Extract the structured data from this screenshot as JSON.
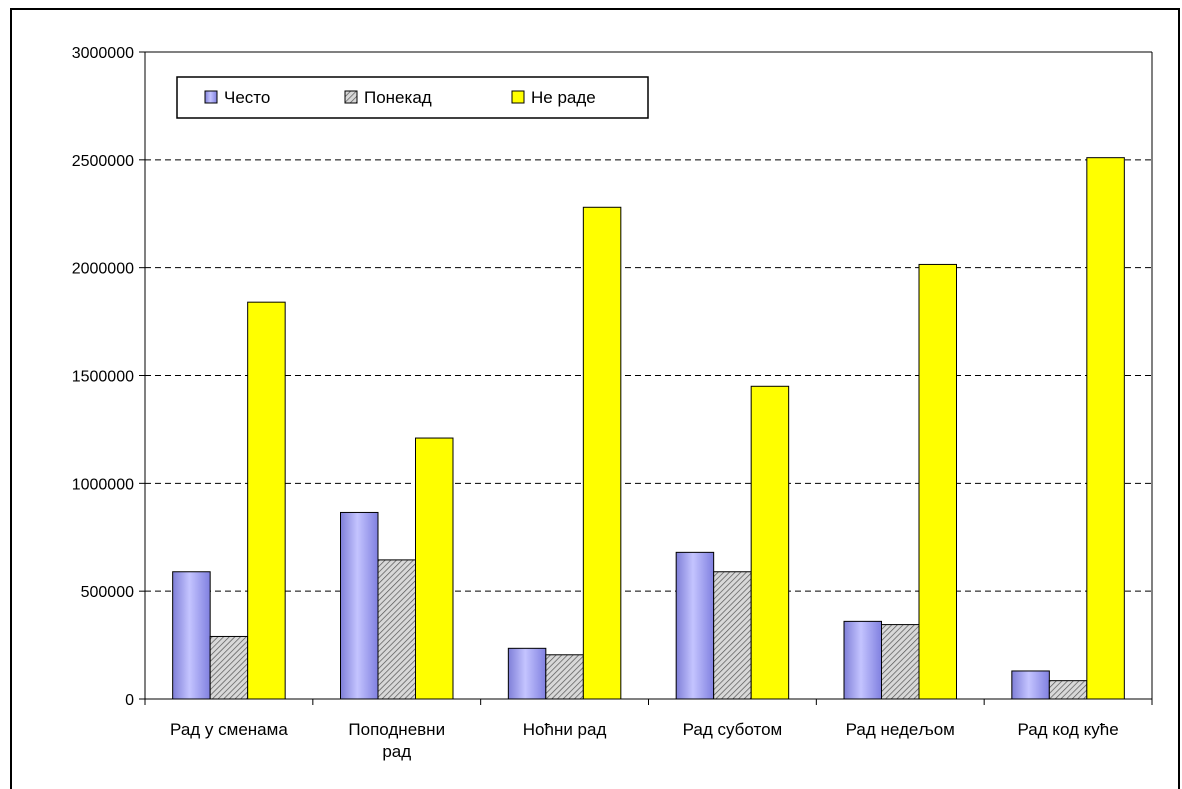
{
  "chart_data": {
    "type": "bar",
    "title": "",
    "xlabel": "",
    "ylabel": "",
    "categories": [
      [
        "Рад у сменама"
      ],
      [
        "Поподневни",
        "рад"
      ],
      [
        "Ноћни рад"
      ],
      [
        "Рад суботом"
      ],
      [
        "Рад недељом"
      ],
      [
        "Рад код куће"
      ]
    ],
    "series": [
      {
        "name": "Често",
        "values": [
          590000,
          865000,
          235000,
          680000,
          360000,
          130000
        ],
        "color": "#9999ff"
      },
      {
        "name": "Понекад",
        "values": [
          290000,
          645000,
          205000,
          590000,
          345000,
          85000
        ],
        "color": "#c0c0c0",
        "pattern": "hatched"
      },
      {
        "name": "Не раде",
        "values": [
          1840000,
          1210000,
          2280000,
          1450000,
          2015000,
          2510000
        ],
        "color": "#ffff00"
      }
    ],
    "ylim": [
      0,
      3000000
    ],
    "yticks": [
      "0",
      "500000",
      "1000000",
      "1500000",
      "2000000",
      "2500000",
      "3000000"
    ],
    "grid": "horizontal-dashed",
    "legend": "top-left"
  }
}
